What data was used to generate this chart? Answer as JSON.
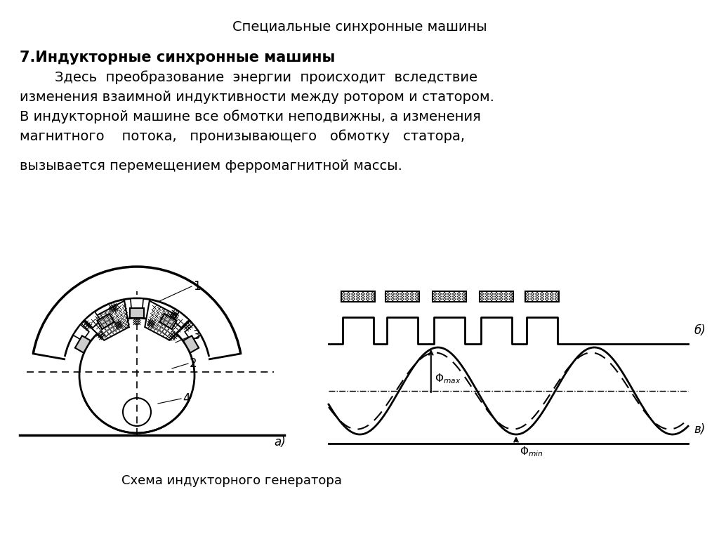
{
  "title": "Специальные синхронные машины",
  "heading": "7.Индукторные синхронные машины",
  "line1": "        Здесь  преобразование  энергии  происходит  вследствие",
  "line2": "изменения взаимной индуктивности между ротором и статором.",
  "line3": "В индукторной машине все обмотки неподвижны, а изменения",
  "line4": "магнитного    потока,   пронизывающего   обмотку   статора,",
  "line5": "вызывается перемещением ферромагнитной массы.",
  "caption": "Схема индукторного генератора",
  "label_a": "а)",
  "label_b": "б)",
  "label_v": "в)",
  "bg_color": "#ffffff",
  "text_color": "#000000",
  "title_fontsize": 14,
  "heading_fontsize": 15,
  "body_fontsize": 14,
  "caption_fontsize": 13
}
